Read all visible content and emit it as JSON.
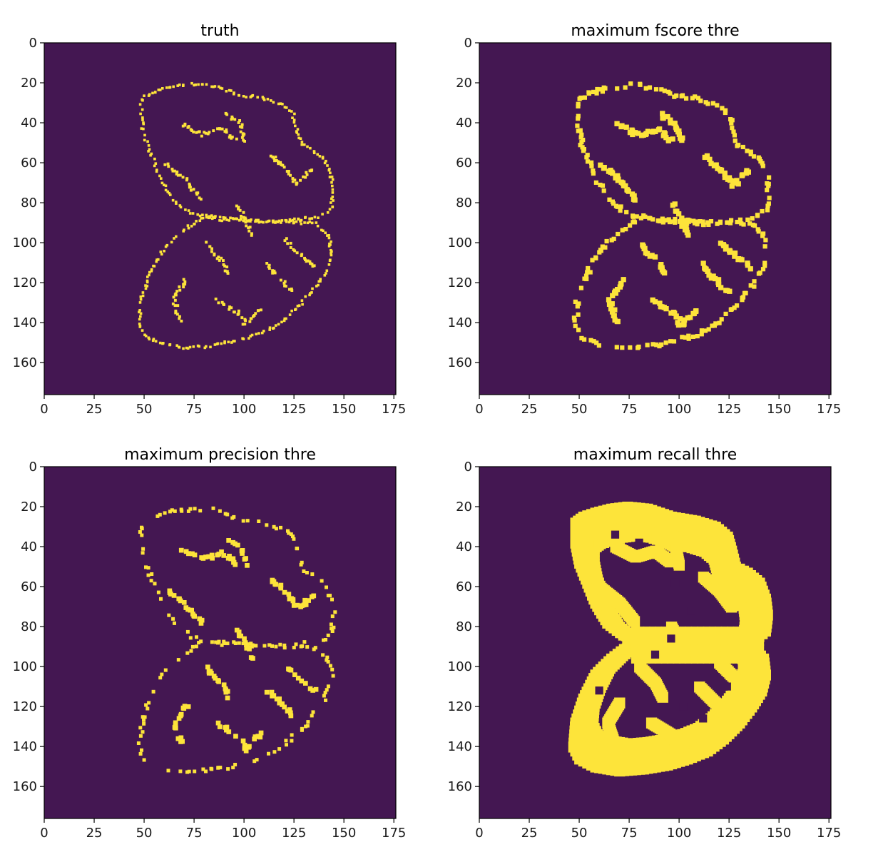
{
  "colors": {
    "background": "#441752",
    "mask": "#fde43a",
    "axis": "#000000"
  },
  "chart_data": [
    {
      "type": "heatmap",
      "title": "truth",
      "xlabel": "",
      "ylabel": "",
      "xlim": [
        0,
        176
      ],
      "ylim": [
        176,
        0
      ],
      "xticks": [
        0,
        25,
        50,
        75,
        100,
        125,
        150,
        175
      ],
      "yticks": [
        0,
        20,
        40,
        60,
        80,
        100,
        120,
        140,
        160
      ],
      "colormap": "viridis binary mask",
      "grid": false,
      "style": "thin",
      "description_values": "binary brain tissue boundary mask, value 1 along gyral contours"
    },
    {
      "type": "heatmap",
      "title": "maximum fscore thre",
      "xlabel": "",
      "ylabel": "",
      "xlim": [
        0,
        176
      ],
      "ylim": [
        176,
        0
      ],
      "xticks": [
        0,
        25,
        50,
        75,
        100,
        125,
        150,
        175
      ],
      "yticks": [
        0,
        20,
        40,
        60,
        80,
        100,
        120,
        140,
        160
      ],
      "colormap": "viridis binary mask",
      "grid": false,
      "style": "medium"
    },
    {
      "type": "heatmap",
      "title": "maximum precision thre",
      "xlabel": "",
      "ylabel": "",
      "xlim": [
        0,
        176
      ],
      "ylim": [
        176,
        0
      ],
      "xticks": [
        0,
        25,
        50,
        75,
        100,
        125,
        150,
        175
      ],
      "yticks": [
        0,
        20,
        40,
        60,
        80,
        100,
        120,
        140,
        160
      ],
      "colormap": "viridis binary mask",
      "grid": false,
      "style": "blobs"
    },
    {
      "type": "heatmap",
      "title": "maximum recall thre",
      "xlabel": "",
      "ylabel": "",
      "xlim": [
        0,
        176
      ],
      "ylim": [
        176,
        0
      ],
      "xticks": [
        0,
        25,
        50,
        75,
        100,
        125,
        150,
        175
      ],
      "yticks": [
        0,
        20,
        40,
        60,
        80,
        100,
        120,
        140,
        160
      ],
      "colormap": "viridis binary mask",
      "grid": false,
      "style": "thick"
    }
  ]
}
